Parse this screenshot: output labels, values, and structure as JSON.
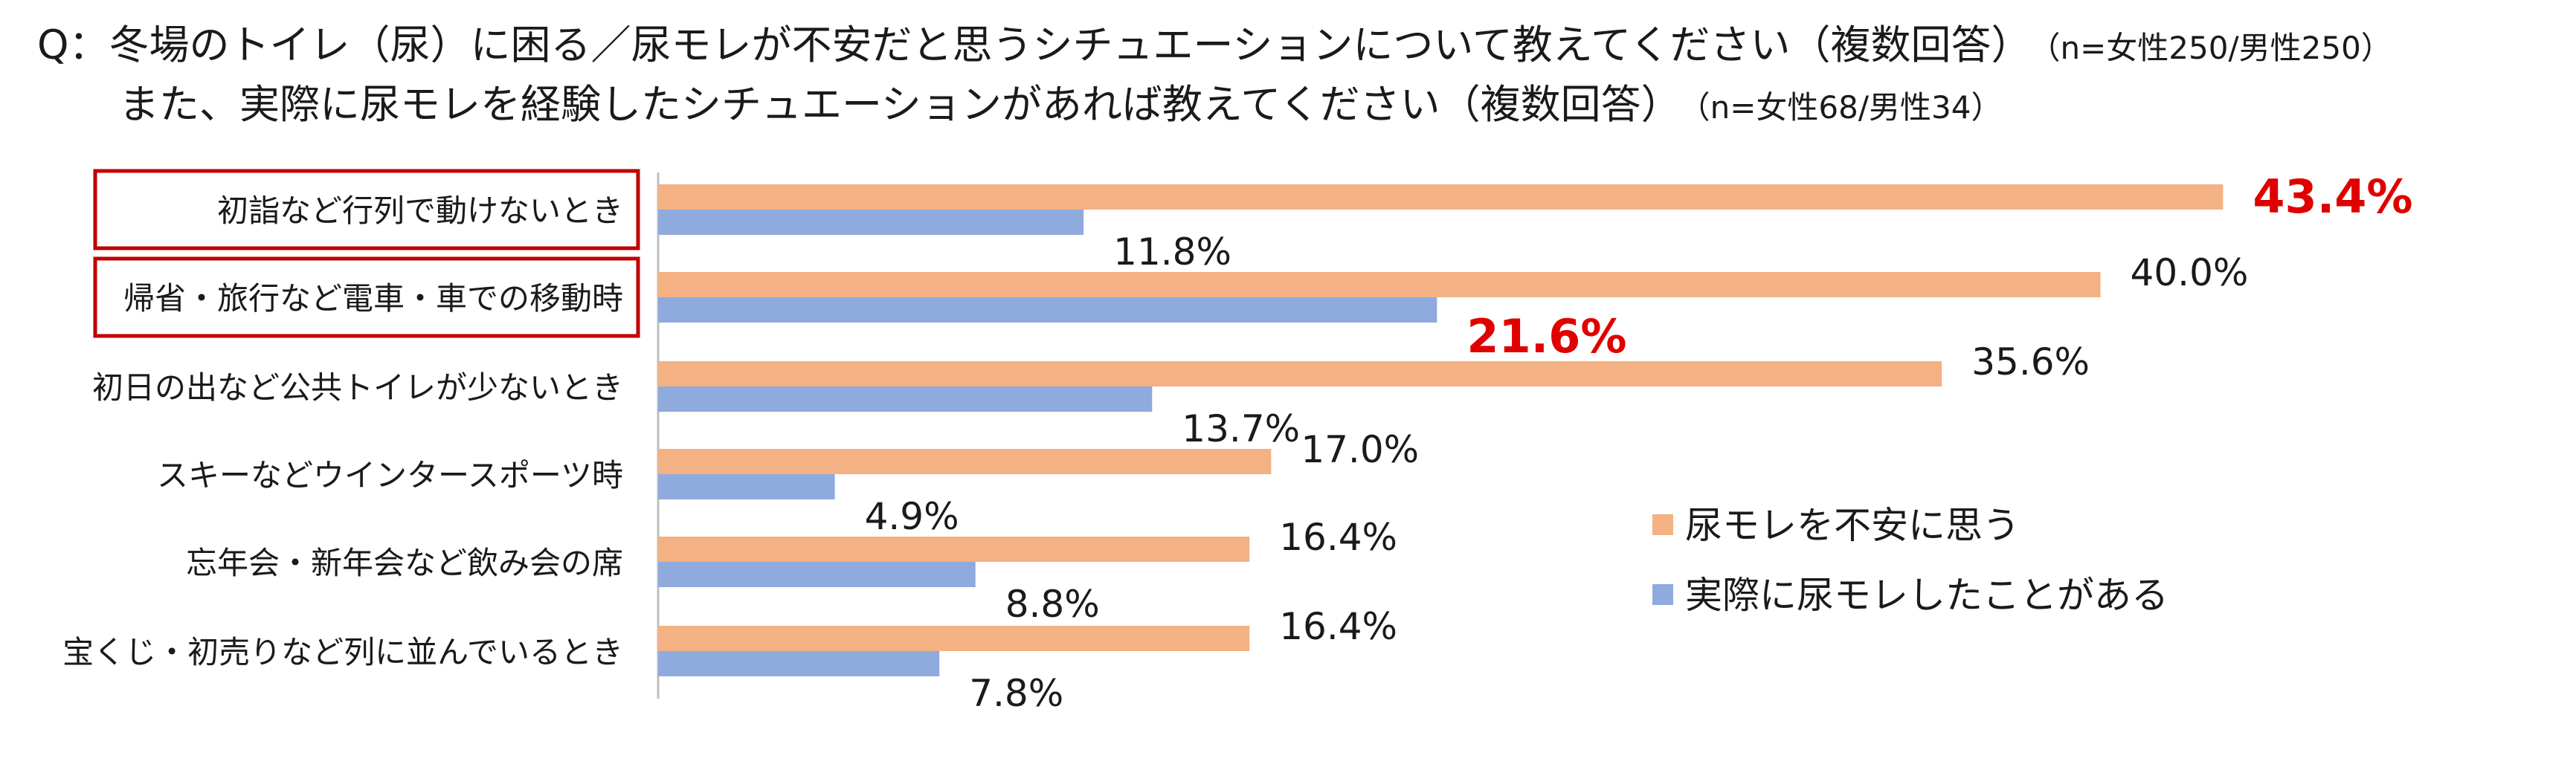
{
  "title": {
    "line1_prefix": "Q：",
    "line1": "冬場のトイレ（尿）に困る／尿モレが不安だと思うシチュエーションについて教えてください（複数回答）",
    "line1_note": "（n=女性250/男性250）",
    "line2": "また、実際に尿モレを経験したシチュエーションがあれば教えてください（複数回答）",
    "line2_note": "（n=女性68/男性34）"
  },
  "colors": {
    "series1": "#F4B183",
    "series2": "#8FAADC",
    "highlight": "#E00000",
    "box": "#C00000",
    "axis": "#BFBFBF"
  },
  "chart_data": {
    "type": "bar",
    "orientation": "horizontal",
    "categories": [
      "初詣など行列で動けないとき",
      "帰省・旅行など電車・車での移動時",
      "初日の出など公共トイレが少ないとき",
      "スキーなどウインタースポーツ時",
      "忘年会・新年会など飲み会の席",
      "宝くじ・初売りなど列に並んでいるとき"
    ],
    "series": [
      {
        "name": "尿モレを不安に思う",
        "values": [
          43.4,
          40.0,
          35.6,
          17.0,
          16.4,
          16.4
        ],
        "labels": [
          "43.4%",
          "40.0%",
          "35.6%",
          "17.0%",
          "16.4%",
          "16.4%"
        ],
        "highlight_index": 0
      },
      {
        "name": "実際に尿モレしたことがある",
        "values": [
          11.8,
          21.6,
          13.7,
          4.9,
          8.8,
          7.8
        ],
        "labels": [
          "11.8%",
          "21.6%",
          "13.7%",
          "4.9%",
          "8.8%",
          "7.8%"
        ],
        "highlight_index": 1
      }
    ],
    "boxed_categories": [
      0,
      1
    ],
    "xlim": [
      0,
      45
    ],
    "legend_position": "right"
  }
}
